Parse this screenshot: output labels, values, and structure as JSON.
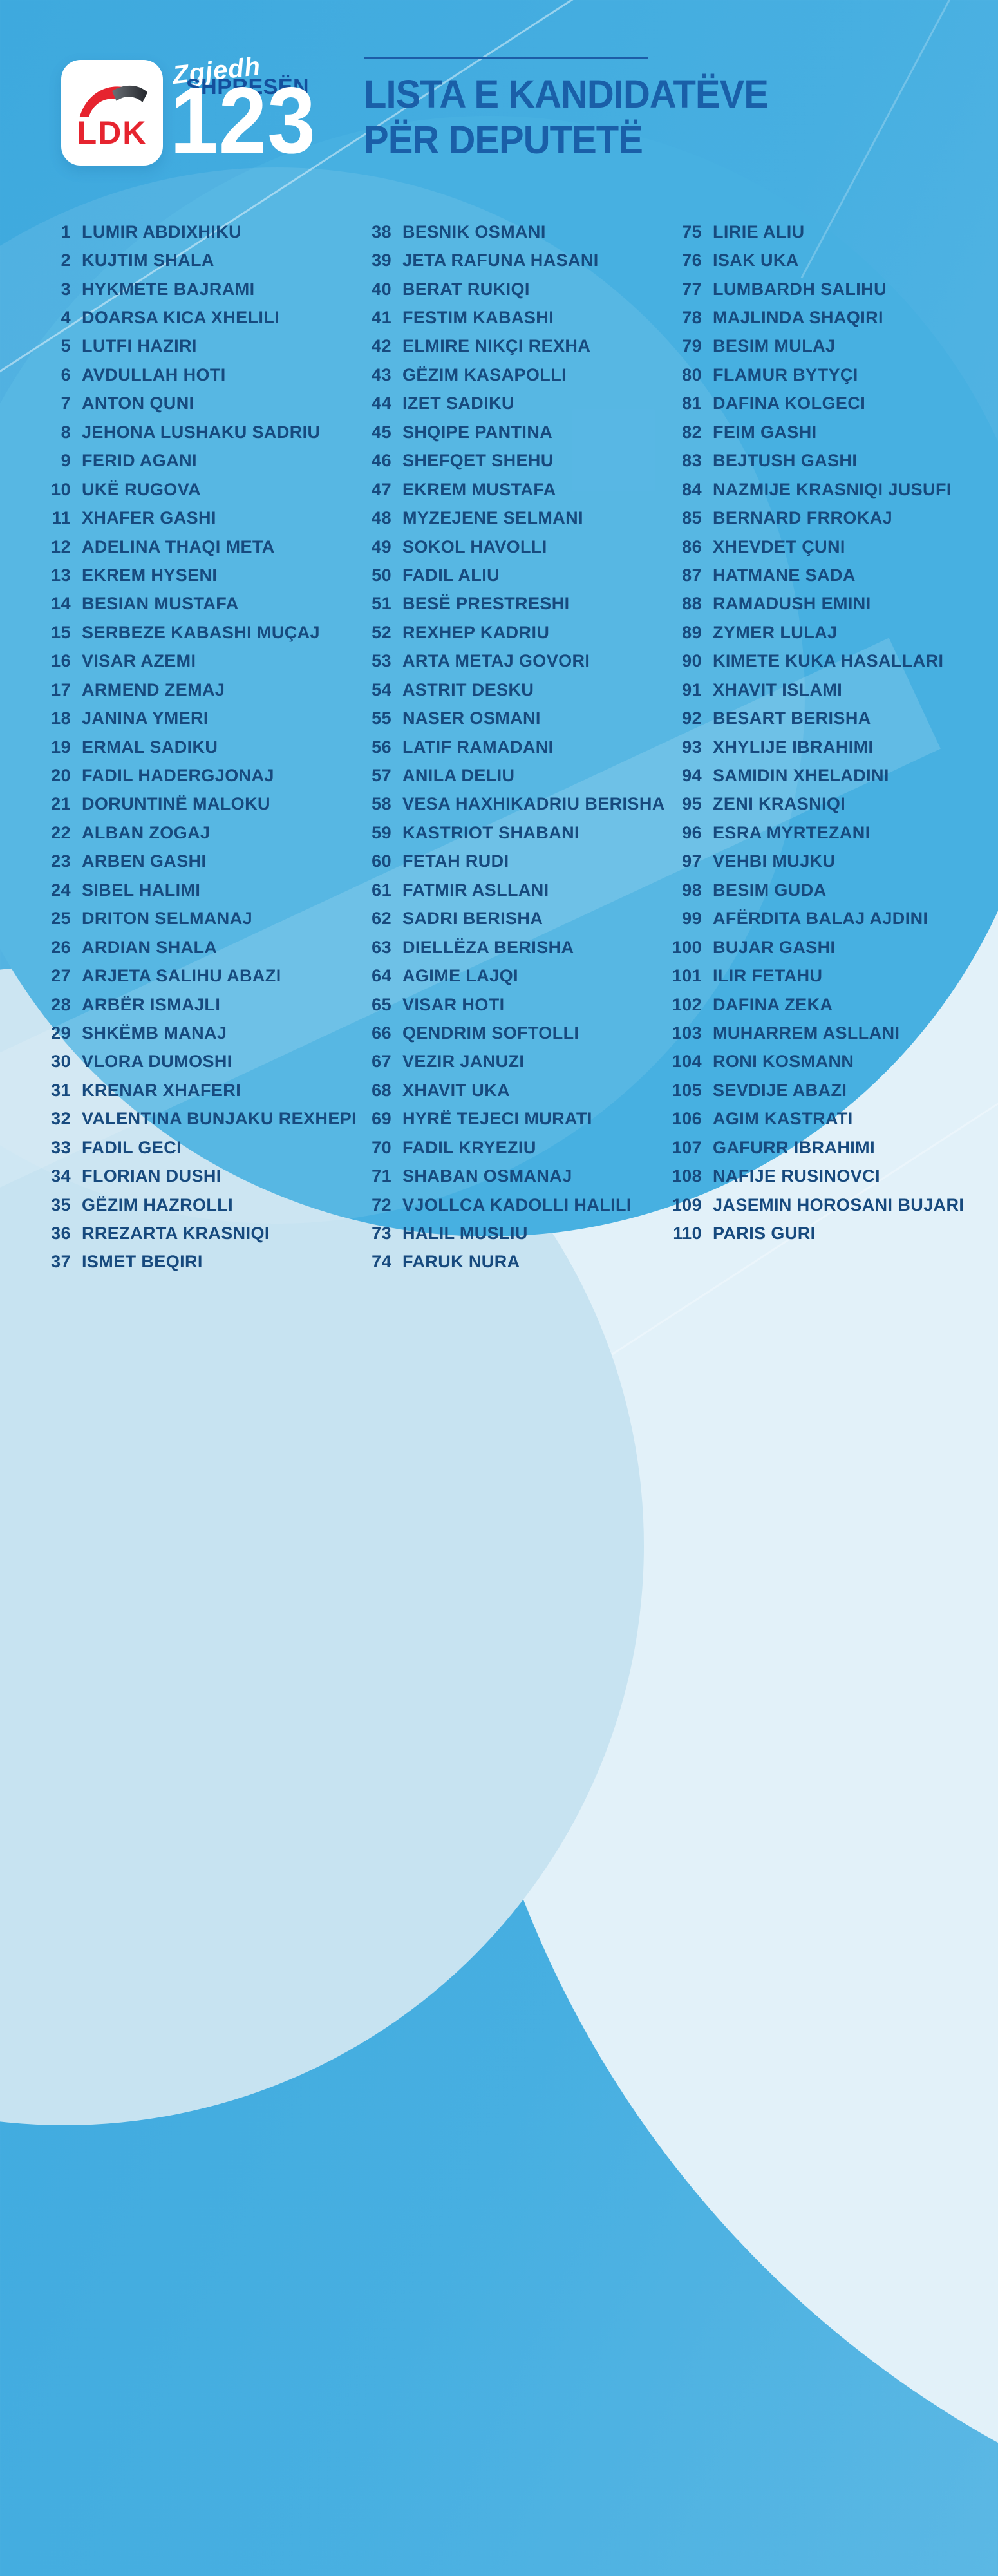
{
  "header": {
    "logo_text": "LDK",
    "slogan_script": "Zgjedh",
    "slogan_bold": "SHPRESËN",
    "ballot_number": "123"
  },
  "title": {
    "line1": "LISTA E KANDIDATËVE",
    "line2": "PËR DEPUTETË"
  },
  "colors": {
    "background_blue": "#43ade0",
    "pale_blue": "#e2f1f9",
    "text_navy": "#174a7e",
    "title_blue": "#1a5fa8",
    "slogan_blue": "#144f9c",
    "ldk_red": "#e6242f",
    "white": "#ffffff"
  },
  "candidates": {
    "columns": [
      [
        {
          "n": 1,
          "name": "LUMIR ABDIXHIKU"
        },
        {
          "n": 2,
          "name": "KUJTIM SHALA"
        },
        {
          "n": 3,
          "name": "HYKMETE BAJRAMI"
        },
        {
          "n": 4,
          "name": "DOARSA KICA XHELILI"
        },
        {
          "n": 5,
          "name": "LUTFI HAZIRI"
        },
        {
          "n": 6,
          "name": "AVDULLAH HOTI"
        },
        {
          "n": 7,
          "name": "ANTON QUNI"
        },
        {
          "n": 8,
          "name": "JEHONA LUSHAKU SADRIU"
        },
        {
          "n": 9,
          "name": "FERID AGANI"
        },
        {
          "n": 10,
          "name": "UKË RUGOVA"
        },
        {
          "n": 11,
          "name": "XHAFER GASHI"
        },
        {
          "n": 12,
          "name": "ADELINA THAQI META"
        },
        {
          "n": 13,
          "name": "EKREM HYSENI"
        },
        {
          "n": 14,
          "name": "BESIAN MUSTAFA"
        },
        {
          "n": 15,
          "name": "SERBEZE KABASHI MUÇAJ"
        },
        {
          "n": 16,
          "name": "VISAR AZEMI"
        },
        {
          "n": 17,
          "name": "ARMEND ZEMAJ"
        },
        {
          "n": 18,
          "name": "JANINA YMERI"
        },
        {
          "n": 19,
          "name": "ERMAL SADIKU"
        },
        {
          "n": 20,
          "name": "FADIL HADERGJONAJ"
        },
        {
          "n": 21,
          "name": "DORUNTINË MALOKU"
        },
        {
          "n": 22,
          "name": "ALBAN ZOGAJ"
        },
        {
          "n": 23,
          "name": "ARBEN GASHI"
        },
        {
          "n": 24,
          "name": "SIBEL HALIMI"
        },
        {
          "n": 25,
          "name": "DRITON SELMANAJ"
        },
        {
          "n": 26,
          "name": "ARDIAN SHALA"
        },
        {
          "n": 27,
          "name": "ARJETA SALIHU ABAZI"
        },
        {
          "n": 28,
          "name": "ARBËR ISMAJLI"
        },
        {
          "n": 29,
          "name": "SHKËMB MANAJ"
        },
        {
          "n": 30,
          "name": "VLORA DUMOSHI"
        },
        {
          "n": 31,
          "name": "KRENAR XHAFERI"
        },
        {
          "n": 32,
          "name": "VALENTINA BUNJAKU REXHEPI"
        },
        {
          "n": 33,
          "name": "FADIL GECI"
        },
        {
          "n": 34,
          "name": "FLORIAN DUSHI"
        },
        {
          "n": 35,
          "name": "GËZIM HAZROLLI"
        },
        {
          "n": 36,
          "name": "RREZARTA KRASNIQI"
        },
        {
          "n": 37,
          "name": "ISMET BEQIRI"
        }
      ],
      [
        {
          "n": 38,
          "name": "BESNIK OSMANI"
        },
        {
          "n": 39,
          "name": "JETA RAFUNA HASANI"
        },
        {
          "n": 40,
          "name": "BERAT RUKIQI"
        },
        {
          "n": 41,
          "name": "FESTIM KABASHI"
        },
        {
          "n": 42,
          "name": "ELMIRE NIKÇI REXHA"
        },
        {
          "n": 43,
          "name": "GËZIM KASAPOLLI"
        },
        {
          "n": 44,
          "name": "IZET SADIKU"
        },
        {
          "n": 45,
          "name": "SHQIPE PANTINA"
        },
        {
          "n": 46,
          "name": "SHEFQET SHEHU"
        },
        {
          "n": 47,
          "name": "EKREM MUSTAFA"
        },
        {
          "n": 48,
          "name": "MYZEJENE SELMANI"
        },
        {
          "n": 49,
          "name": "SOKOL HAVOLLI"
        },
        {
          "n": 50,
          "name": "FADIL ALIU"
        },
        {
          "n": 51,
          "name": "BESË PRESTRESHI"
        },
        {
          "n": 52,
          "name": "REXHEP KADRIU"
        },
        {
          "n": 53,
          "name": "ARTA METAJ GOVORI"
        },
        {
          "n": 54,
          "name": "ASTRIT DESKU"
        },
        {
          "n": 55,
          "name": "NASER OSMANI"
        },
        {
          "n": 56,
          "name": "LATIF RAMADANI"
        },
        {
          "n": 57,
          "name": "ANILA DELIU"
        },
        {
          "n": 58,
          "name": "VESA HAXHIKADRIU BERISHA"
        },
        {
          "n": 59,
          "name": "KASTRIOT SHABANI"
        },
        {
          "n": 60,
          "name": "FETAH RUDI"
        },
        {
          "n": 61,
          "name": "FATMIR ASLLANI"
        },
        {
          "n": 62,
          "name": "SADRI BERISHA"
        },
        {
          "n": 63,
          "name": "DIELLËZA BERISHA"
        },
        {
          "n": 64,
          "name": "AGIME LAJQI"
        },
        {
          "n": 65,
          "name": "VISAR HOTI"
        },
        {
          "n": 66,
          "name": "QENDRIM SOFTOLLI"
        },
        {
          "n": 67,
          "name": "VEZIR JANUZI"
        },
        {
          "n": 68,
          "name": "XHAVIT UKA"
        },
        {
          "n": 69,
          "name": "HYRË TEJECI MURATI"
        },
        {
          "n": 70,
          "name": "FADIL KRYEZIU"
        },
        {
          "n": 71,
          "name": "SHABAN OSMANAJ"
        },
        {
          "n": 72,
          "name": "VJOLLCA KADOLLI HALILI"
        },
        {
          "n": 73,
          "name": "HALIL MUSLIU"
        },
        {
          "n": 74,
          "name": "FARUK NURA"
        }
      ],
      [
        {
          "n": 75,
          "name": "LIRIE ALIU"
        },
        {
          "n": 76,
          "name": "ISAK UKA"
        },
        {
          "n": 77,
          "name": "LUMBARDH SALIHU"
        },
        {
          "n": 78,
          "name": "MAJLINDA SHAQIRI"
        },
        {
          "n": 79,
          "name": "BESIM MULAJ"
        },
        {
          "n": 80,
          "name": "FLAMUR BYTYÇI"
        },
        {
          "n": 81,
          "name": "DAFINA KOLGECI"
        },
        {
          "n": 82,
          "name": "FEIM GASHI"
        },
        {
          "n": 83,
          "name": "BEJTUSH GASHI"
        },
        {
          "n": 84,
          "name": "NAZMIJE KRASNIQI JUSUFI"
        },
        {
          "n": 85,
          "name": "BERNARD FRROKAJ"
        },
        {
          "n": 86,
          "name": "XHEVDET ÇUNI"
        },
        {
          "n": 87,
          "name": "HATMANE SADA"
        },
        {
          "n": 88,
          "name": "RAMADUSH EMINI"
        },
        {
          "n": 89,
          "name": "ZYMER LULAJ"
        },
        {
          "n": 90,
          "name": "KIMETE KUKA HASALLARI"
        },
        {
          "n": 91,
          "name": "XHAVIT ISLAMI"
        },
        {
          "n": 92,
          "name": "BESART BERISHA"
        },
        {
          "n": 93,
          "name": "XHYLIJE IBRAHIMI"
        },
        {
          "n": 94,
          "name": "SAMIDIN XHELADINI"
        },
        {
          "n": 95,
          "name": "ZENI KRASNIQI"
        },
        {
          "n": 96,
          "name": "ESRA MYRTEZANI"
        },
        {
          "n": 97,
          "name": "VEHBI MUJKU"
        },
        {
          "n": 98,
          "name": "BESIM GUDA"
        },
        {
          "n": 99,
          "name": "AFËRDITA BALAJ AJDINI"
        },
        {
          "n": 100,
          "name": "BUJAR GASHI"
        },
        {
          "n": 101,
          "name": "ILIR FETAHU"
        },
        {
          "n": 102,
          "name": "DAFINA ZEKA"
        },
        {
          "n": 103,
          "name": "MUHARREM ASLLANI"
        },
        {
          "n": 104,
          "name": "RONI KOSMANN"
        },
        {
          "n": 105,
          "name": "SEVDIJE ABAZI"
        },
        {
          "n": 106,
          "name": "AGIM KASTRATI"
        },
        {
          "n": 107,
          "name": "GAFURR IBRAHIMI"
        },
        {
          "n": 108,
          "name": "NAFIJE RUSINOVCI"
        },
        {
          "n": 109,
          "name": "JASEMIN HOROSANI BUJARI"
        },
        {
          "n": 110,
          "name": "PARIS GURI"
        }
      ]
    ]
  }
}
